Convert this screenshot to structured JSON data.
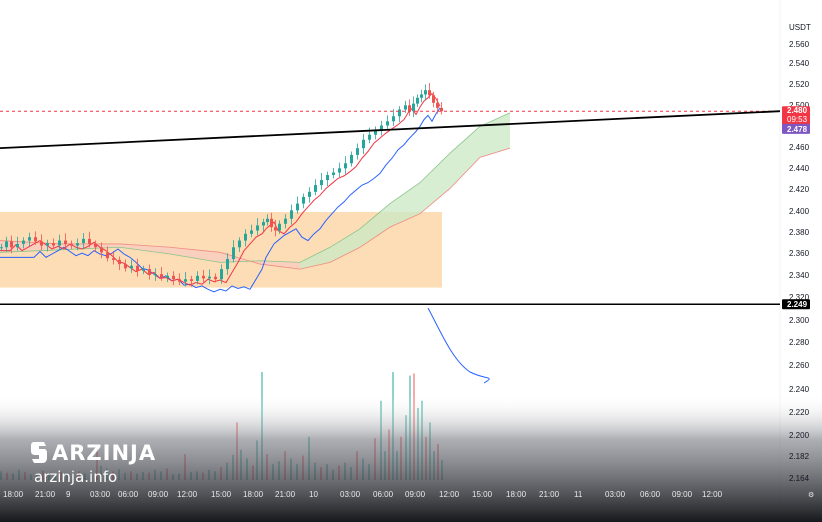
{
  "colors": {
    "bull": "#26a69a",
    "bear": "#ef5350",
    "tenkan": "#f23645",
    "kijun": "#2962ff",
    "zone": "#fbd7a8",
    "cloud_green": "#c9e8c4",
    "cloud_red": "#f8c9c2",
    "current_price": "#f23645",
    "prev_close": "#7e57c2"
  },
  "chart_data": {
    "type": "candlestick",
    "currency": "USDT",
    "y_ticks": [
      "2.560",
      "2.540",
      "2.520",
      "2.500",
      "2.460",
      "2.440",
      "2.420",
      "2.400",
      "2.380",
      "2.360",
      "2.340",
      "2.320",
      "2.300",
      "2.280",
      "2.260",
      "2.240",
      "2.220",
      "2.200",
      "2.182",
      "2.164"
    ],
    "x_ticks": [
      "18:00",
      "21:00",
      "9",
      "03:00",
      "06:00",
      "09:00",
      "12:00",
      "15:00",
      "18:00",
      "21:00",
      "10",
      "03:00",
      "06:00",
      "09:00",
      "12:00",
      "15:00",
      "18:00",
      "21:00",
      "11",
      "03:00",
      "06:00",
      "09:00",
      "12:00"
    ],
    "price_labels": {
      "current_price": "2.480",
      "countdown": "09:53",
      "prev_close": "2.478",
      "horizontal_level": "2.249"
    },
    "horizontal_level": 2.249,
    "demand_zone": {
      "price_top": 2.36,
      "price_bottom": 2.27
    },
    "trendline": {
      "start_price": 2.436,
      "end_price": 2.48
    },
    "price_path": [
      [
        0,
        2.318
      ],
      [
        5,
        2.325
      ],
      [
        10,
        2.318
      ],
      [
        16,
        2.322
      ],
      [
        22,
        2.326
      ],
      [
        28,
        2.33
      ],
      [
        34,
        2.325
      ],
      [
        40,
        2.32
      ],
      [
        46,
        2.323
      ],
      [
        52,
        2.32
      ],
      [
        58,
        2.326
      ],
      [
        64,
        2.322
      ],
      [
        70,
        2.32
      ],
      [
        76,
        2.323
      ],
      [
        82,
        2.328
      ],
      [
        88,
        2.322
      ],
      [
        94,
        2.318
      ],
      [
        100,
        2.312
      ],
      [
        106,
        2.305
      ],
      [
        112,
        2.303
      ],
      [
        118,
        2.298
      ],
      [
        124,
        2.293
      ],
      [
        130,
        2.296
      ],
      [
        136,
        2.29
      ],
      [
        142,
        2.292
      ],
      [
        148,
        2.285
      ],
      [
        154,
        2.286
      ],
      [
        160,
        2.282
      ],
      [
        166,
        2.284
      ],
      [
        172,
        2.28
      ],
      [
        178,
        2.277
      ],
      [
        184,
        2.28
      ],
      [
        190,
        2.278
      ],
      [
        196,
        2.284
      ],
      [
        202,
        2.281
      ],
      [
        208,
        2.283
      ],
      [
        214,
        2.28
      ],
      [
        220,
        2.292
      ],
      [
        226,
        2.304
      ],
      [
        232,
        2.318
      ],
      [
        238,
        2.326
      ],
      [
        244,
        2.334
      ],
      [
        250,
        2.338
      ],
      [
        256,
        2.344
      ],
      [
        262,
        2.348
      ],
      [
        266,
        2.352
      ],
      [
        270,
        2.342
      ],
      [
        274,
        2.338
      ],
      [
        278,
        2.346
      ],
      [
        284,
        2.352
      ],
      [
        290,
        2.362
      ],
      [
        296,
        2.37
      ],
      [
        302,
        2.378
      ],
      [
        308,
        2.384
      ],
      [
        314,
        2.392
      ],
      [
        320,
        2.398
      ],
      [
        326,
        2.404
      ],
      [
        332,
        2.407
      ],
      [
        338,
        2.412
      ],
      [
        344,
        2.418
      ],
      [
        350,
        2.428
      ],
      [
        356,
        2.436
      ],
      [
        362,
        2.446
      ],
      [
        368,
        2.452
      ],
      [
        374,
        2.458
      ],
      [
        380,
        2.463
      ],
      [
        386,
        2.468
      ],
      [
        392,
        2.474
      ],
      [
        398,
        2.482
      ],
      [
        404,
        2.487
      ],
      [
        408,
        2.48
      ],
      [
        412,
        2.489
      ],
      [
        416,
        2.496
      ],
      [
        420,
        2.5
      ],
      [
        424,
        2.505
      ],
      [
        428,
        2.499
      ],
      [
        432,
        2.49
      ],
      [
        436,
        2.484
      ],
      [
        440,
        2.48
      ]
    ],
    "volume_profile": [
      [
        0,
        12
      ],
      [
        6,
        10
      ],
      [
        12,
        9
      ],
      [
        18,
        14
      ],
      [
        24,
        11
      ],
      [
        30,
        8
      ],
      [
        36,
        10
      ],
      [
        42,
        13
      ],
      [
        48,
        9
      ],
      [
        54,
        7
      ],
      [
        60,
        11
      ],
      [
        66,
        10
      ],
      [
        72,
        14
      ],
      [
        78,
        12
      ],
      [
        84,
        9
      ],
      [
        90,
        11
      ],
      [
        96,
        45
      ],
      [
        100,
        20
      ],
      [
        106,
        16
      ],
      [
        112,
        12
      ],
      [
        118,
        15
      ],
      [
        124,
        10
      ],
      [
        130,
        12
      ],
      [
        136,
        9
      ],
      [
        142,
        11
      ],
      [
        148,
        10
      ],
      [
        154,
        14
      ],
      [
        160,
        12
      ],
      [
        166,
        16
      ],
      [
        172,
        8
      ],
      [
        178,
        9
      ],
      [
        184,
        36
      ],
      [
        190,
        11
      ],
      [
        196,
        12
      ],
      [
        202,
        10
      ],
      [
        208,
        14
      ],
      [
        214,
        12
      ],
      [
        220,
        18
      ],
      [
        226,
        24
      ],
      [
        232,
        35
      ],
      [
        236,
        80
      ],
      [
        240,
        42
      ],
      [
        246,
        30
      ],
      [
        252,
        20
      ],
      [
        256,
        55
      ],
      [
        261,
        150
      ],
      [
        266,
        36
      ],
      [
        272,
        22
      ],
      [
        278,
        26
      ],
      [
        284,
        40
      ],
      [
        290,
        30
      ],
      [
        296,
        22
      ],
      [
        302,
        34
      ],
      [
        308,
        60
      ],
      [
        314,
        24
      ],
      [
        320,
        18
      ],
      [
        326,
        22
      ],
      [
        332,
        14
      ],
      [
        338,
        20
      ],
      [
        344,
        24
      ],
      [
        350,
        18
      ],
      [
        356,
        40
      ],
      [
        362,
        30
      ],
      [
        368,
        22
      ],
      [
        374,
        58
      ],
      [
        380,
        110
      ],
      [
        384,
        40
      ],
      [
        388,
        70
      ],
      [
        392,
        150
      ],
      [
        396,
        40
      ],
      [
        400,
        60
      ],
      [
        405,
        90
      ],
      [
        409,
        145
      ],
      [
        413,
        148
      ],
      [
        417,
        100
      ],
      [
        421,
        110
      ],
      [
        425,
        60
      ],
      [
        429,
        80
      ],
      [
        433,
        40
      ],
      [
        437,
        50
      ],
      [
        441,
        28
      ]
    ]
  },
  "watermark": {
    "brand": "ARZINJA",
    "site": "arzinja.info"
  }
}
